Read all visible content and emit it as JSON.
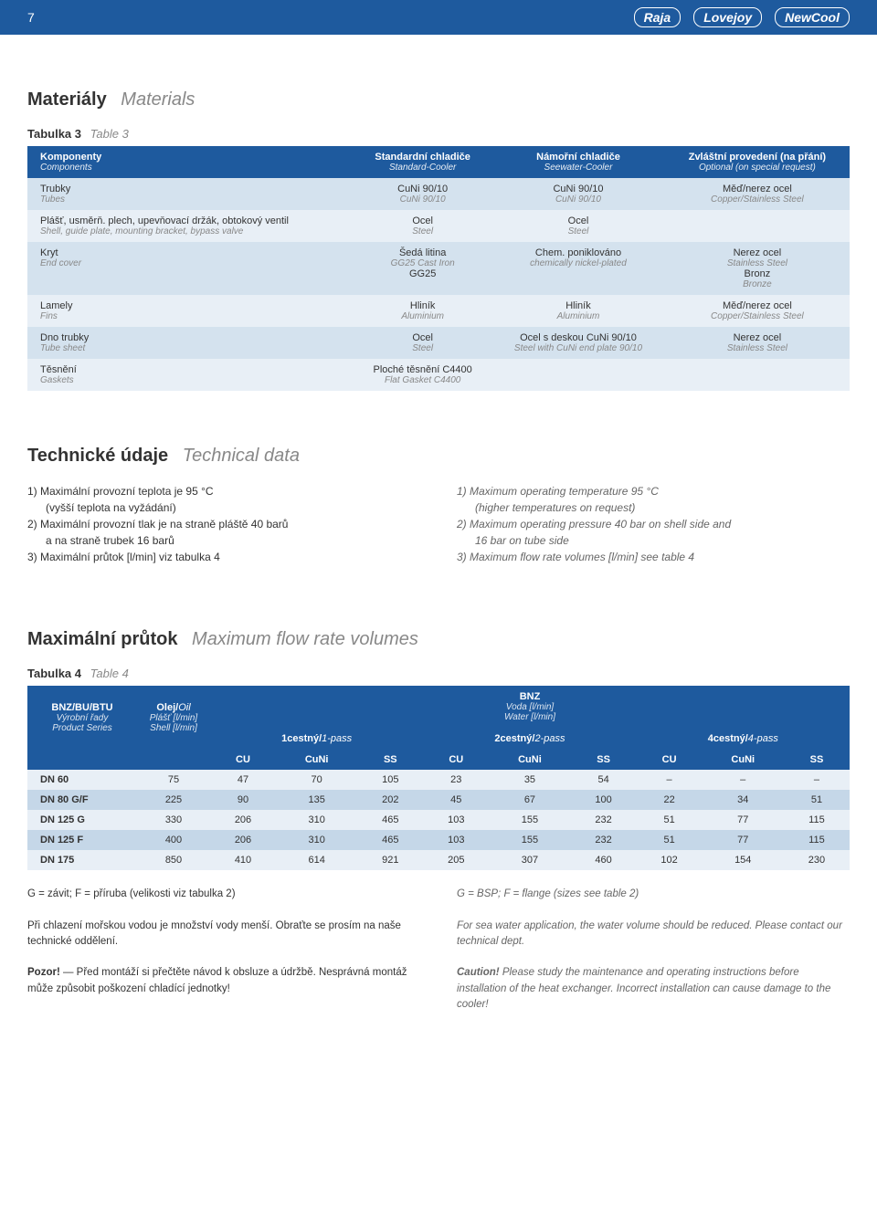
{
  "header": {
    "page_num": "7",
    "logos": [
      "Raja",
      "Lovejoy",
      "NewCool"
    ]
  },
  "section1": {
    "title_cs": "Materiály",
    "title_en": "Materials",
    "caption_cs": "Tabulka 3",
    "caption_en": "Table 3",
    "headers": [
      {
        "cs": "Komponenty",
        "en": "Components"
      },
      {
        "cs": "Standardní chladiče",
        "en": "Standard-Cooler"
      },
      {
        "cs": "Námořní chladiče",
        "en": "Seewater-Cooler"
      },
      {
        "cs": "Zvláštní provedení (na přání)",
        "en": "Optional (on special request)"
      }
    ],
    "rows": [
      {
        "cls": "odd",
        "c0": {
          "cs": "Trubky",
          "en": "Tubes"
        },
        "c1": {
          "cs": "CuNi 90/10",
          "en": "CuNi 90/10"
        },
        "c2": {
          "cs": "CuNi 90/10",
          "en": "CuNi 90/10"
        },
        "c3": {
          "cs": "Měď/nerez ocel",
          "en": "Copper/Stainless Steel"
        }
      },
      {
        "cls": "",
        "c0": {
          "cs": "Plášť, usměrň. plech, upevňovací držák, obtokový ventil",
          "en": "Shell, guide plate, mounting bracket, bypass valve"
        },
        "c1": {
          "cs": "Ocel",
          "en": "Steel"
        },
        "c2": {
          "cs": "Ocel",
          "en": "Steel"
        },
        "c3": {
          "cs": "",
          "en": ""
        }
      },
      {
        "cls": "odd",
        "c0": {
          "cs": "Kryt",
          "en": "End cover"
        },
        "c1": {
          "cs": "Šedá litina",
          "en": "GG25 Cast Iron",
          "l3": "GG25"
        },
        "c2": {
          "cs": "Chem. poniklováno",
          "en": "chemically nickel-plated"
        },
        "c3": {
          "cs": "Nerez ocel",
          "en": "Stainless Steel",
          "l3": "Bronz",
          "l4": "Bronze"
        }
      },
      {
        "cls": "",
        "c0": {
          "cs": "Lamely",
          "en": "Fins"
        },
        "c1": {
          "cs": "Hliník",
          "en": "Aluminium"
        },
        "c2": {
          "cs": "Hliník",
          "en": "Aluminium"
        },
        "c3": {
          "cs": "Měď/nerez ocel",
          "en": "Copper/Stainless Steel"
        }
      },
      {
        "cls": "odd",
        "c0": {
          "cs": "Dno trubky",
          "en": "Tube sheet"
        },
        "c1": {
          "cs": "Ocel",
          "en": "Steel"
        },
        "c2": {
          "cs": "Ocel s deskou CuNi 90/10",
          "en": "Steel with CuNi end plate 90/10"
        },
        "c3": {
          "cs": "Nerez ocel",
          "en": "Stainless Steel"
        }
      },
      {
        "cls": "",
        "c0": {
          "cs": "Těsnění",
          "en": "Gaskets"
        },
        "c1": {
          "cs": "Ploché těsnění C4400",
          "en": "Flat Gasket C4400"
        },
        "c2": {
          "cs": "",
          "en": ""
        },
        "c3": {
          "cs": "",
          "en": ""
        }
      }
    ]
  },
  "section2": {
    "title_cs": "Technické údaje",
    "title_en": "Technical data",
    "cs": [
      "1) Maximální provozní teplota je 95 °C",
      "(vyšší teplota na vyžádání)",
      "2) Maximální provozní tlak je na straně pláště 40 barů",
      "a na straně trubek 16 barů",
      "3) Maximální průtok [l/min] viz tabulka 4"
    ],
    "en": [
      "1) Maximum operating temperature 95 °C",
      "(higher temperatures on request)",
      "2) Maximum operating pressure 40 bar on shell side and",
      "16 bar on tube side",
      "3) Maximum flow rate volumes [l/min] see table 4"
    ]
  },
  "section3": {
    "title_cs": "Maximální průtok",
    "title_en": "Maximum flow rate volumes",
    "caption_cs": "Tabulka 4",
    "caption_en": "Table 4",
    "h1": {
      "cs": "BNZ/BU/BTU",
      "l2": "Výrobní řady",
      "en": "Product Series"
    },
    "h2": {
      "cs": "Olej/",
      "en_in": "Oil",
      "l2": "Plášť [l/min]",
      "en": "Shell [l/min]"
    },
    "h3": {
      "cs": "BNZ",
      "l2": "Voda [l/min]",
      "en": "Water [l/min]"
    },
    "pass1": {
      "cs": "1cestný/",
      "en": "1-pass"
    },
    "pass2": {
      "cs": "2cestný/",
      "en": "2-pass"
    },
    "pass4": {
      "cs": "4cestný/",
      "en": "4-pass"
    },
    "subhdr": [
      "CU",
      "CuNi",
      "SS",
      "CU",
      "CuNi",
      "SS",
      "CU",
      "CuNi",
      "SS"
    ],
    "rows": [
      {
        "cls": "light",
        "label": "DN 60",
        "oil": "75",
        "v": [
          "47",
          "70",
          "105",
          "23",
          "35",
          "54",
          "–",
          "–",
          "–"
        ]
      },
      {
        "cls": "dark",
        "label": "DN 80 G/F",
        "oil": "225",
        "v": [
          "90",
          "135",
          "202",
          "45",
          "67",
          "100",
          "22",
          "34",
          "51"
        ]
      },
      {
        "cls": "light",
        "label": "DN 125 G",
        "oil": "330",
        "v": [
          "206",
          "310",
          "465",
          "103",
          "155",
          "232",
          "51",
          "77",
          "115"
        ]
      },
      {
        "cls": "dark",
        "label": "DN 125 F",
        "oil": "400",
        "v": [
          "206",
          "310",
          "465",
          "103",
          "155",
          "232",
          "51",
          "77",
          "115"
        ]
      },
      {
        "cls": "light",
        "label": "DN 175",
        "oil": "850",
        "v": [
          "410",
          "614",
          "921",
          "205",
          "307",
          "460",
          "102",
          "154",
          "230"
        ]
      }
    ]
  },
  "notes": {
    "cs1": "G = závit; F = příruba (velikosti viz tabulka 2)",
    "cs2": "Při chlazení mořskou vodou je množství vody menší. Obraťte se prosím na naše technické oddělení.",
    "cs3a": "Pozor!",
    "cs3b": " — Před montáží si přečtěte návod k obsluze a údržbě. Nesprávná montáž může způsobit poškození chladící jednotky!",
    "en1": "G = BSP; F = flange (sizes see table 2)",
    "en2": "For sea water application, the water volume should be reduced. Please contact our technical dept.",
    "en3a": "Caution!",
    "en3b": " Please study the maintenance and operating instructions before installation of the heat exchanger. Incorrect installation can cause damage to the cooler!"
  }
}
